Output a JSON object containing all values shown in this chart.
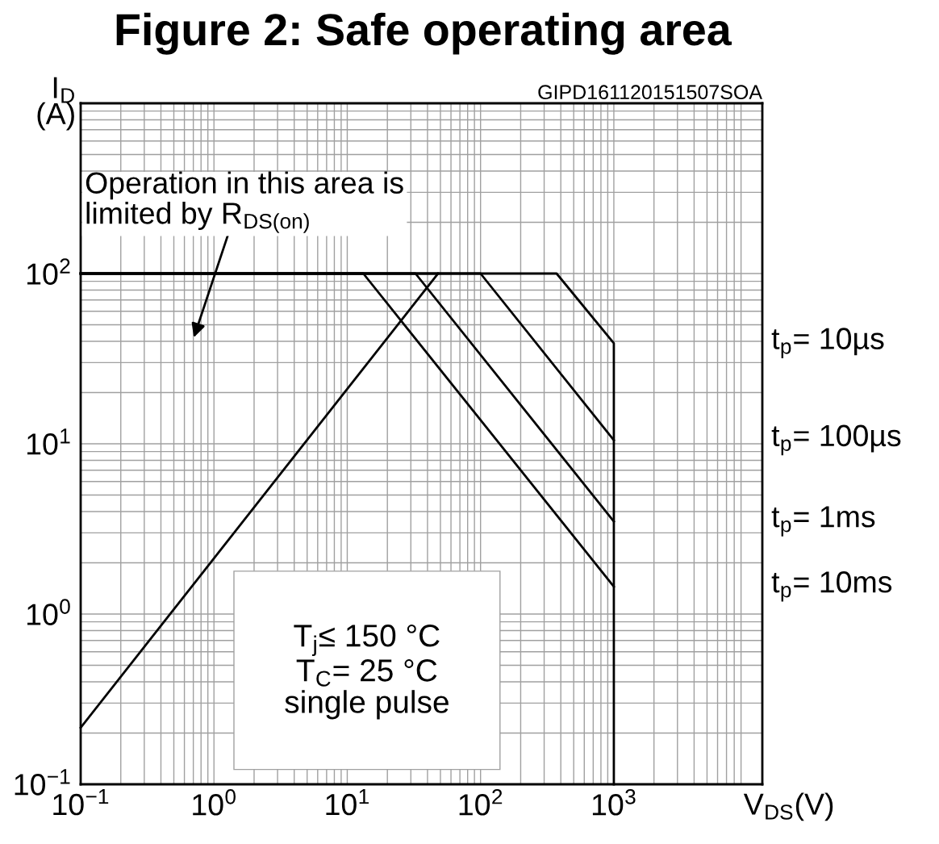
{
  "chart_data": {
    "type": "line",
    "title": "Figure 2: Safe operating area",
    "xlabel": "V$_{DS}$(V)",
    "ylabel": "I$_{D}$\n(A)",
    "log": "xy",
    "grid": true,
    "legend": false,
    "line_style": "solid",
    "marker": "none",
    "xlim": [
      0.1,
      13000
    ],
    "ylim": [
      0.1,
      1000
    ],
    "xticks": [
      {
        "value": 0.1,
        "label": "10$^{−1}$"
      },
      {
        "value": 1,
        "label": "10$^{0}$"
      },
      {
        "value": 10,
        "label": "10$^{1}$"
      },
      {
        "value": 100,
        "label": "10$^{2}$"
      },
      {
        "value": 1000,
        "label": "10$^{3}$"
      }
    ],
    "yticks": [
      {
        "value": 0.1,
        "label": "10$^{−1}$"
      },
      {
        "value": 1,
        "label": "10$^{0}$"
      },
      {
        "value": 10,
        "label": "10$^{1}$"
      },
      {
        "value": 100,
        "label": "10$^{2}$"
      },
      {
        "value": 1000,
        "label": null
      }
    ],
    "series": [
      {
        "color": "#000000",
        "x": [
          0.1,
          48
        ],
        "values": [
          0.215,
          100
        ]
      },
      {
        "name": "t$_{p}$= 10µs",
        "color": "#000000",
        "x": [
          0.1,
          372,
          1000,
          1000
        ],
        "values": [
          100,
          100,
          39,
          0.1
        ]
      },
      {
        "name": "t$_{p}$= 100µs",
        "color": "#000000",
        "x": [
          0.1,
          100,
          1000
        ],
        "values": [
          100,
          100,
          10.5
        ]
      },
      {
        "name": "t$_{p}$= 1ms",
        "color": "#000000",
        "x": [
          0.1,
          32.5,
          1000
        ],
        "values": [
          100,
          100,
          3.5
        ]
      },
      {
        "name": "t$_{p}$= 10ms",
        "color": "#000000",
        "x": [
          0.1,
          13.2,
          1000
        ],
        "values": [
          100,
          100,
          1.45
        ]
      }
    ],
    "annotations": [
      "Operation in this area is\nlimited by R$_{DS(on)}$",
      "T$_{j}$≤ 150 °C\nT$_{C}$= 25 °C\nsingle pulse",
      "GIPD161120151507SOA"
    ]
  }
}
